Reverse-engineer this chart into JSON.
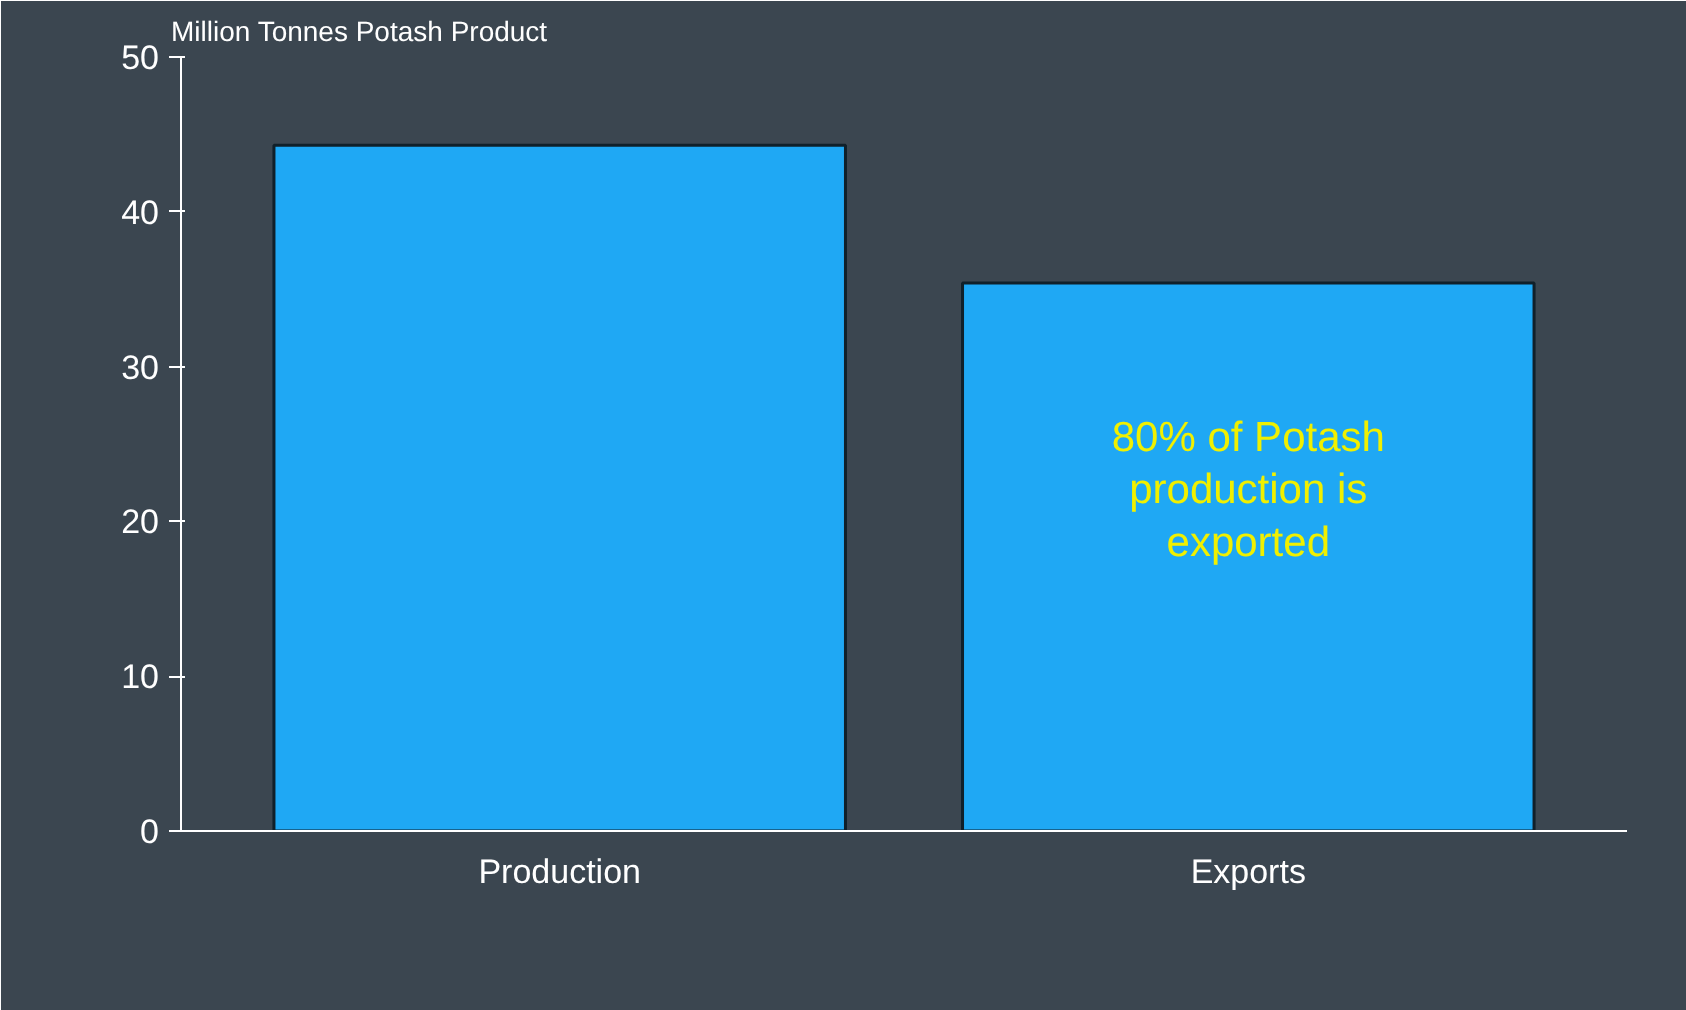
{
  "chart_data": {
    "type": "bar",
    "ylabel": "Million Tonnes Potash Product",
    "categories": [
      "Production",
      "Exports"
    ],
    "values": [
      44.3,
      35.4
    ],
    "color": "#1fa8f4",
    "ylim": [
      0,
      50
    ],
    "yticks": [
      0,
      10,
      20,
      30,
      40,
      50
    ],
    "grid": false,
    "annotations": [
      "80% of Potash production is exported"
    ]
  }
}
